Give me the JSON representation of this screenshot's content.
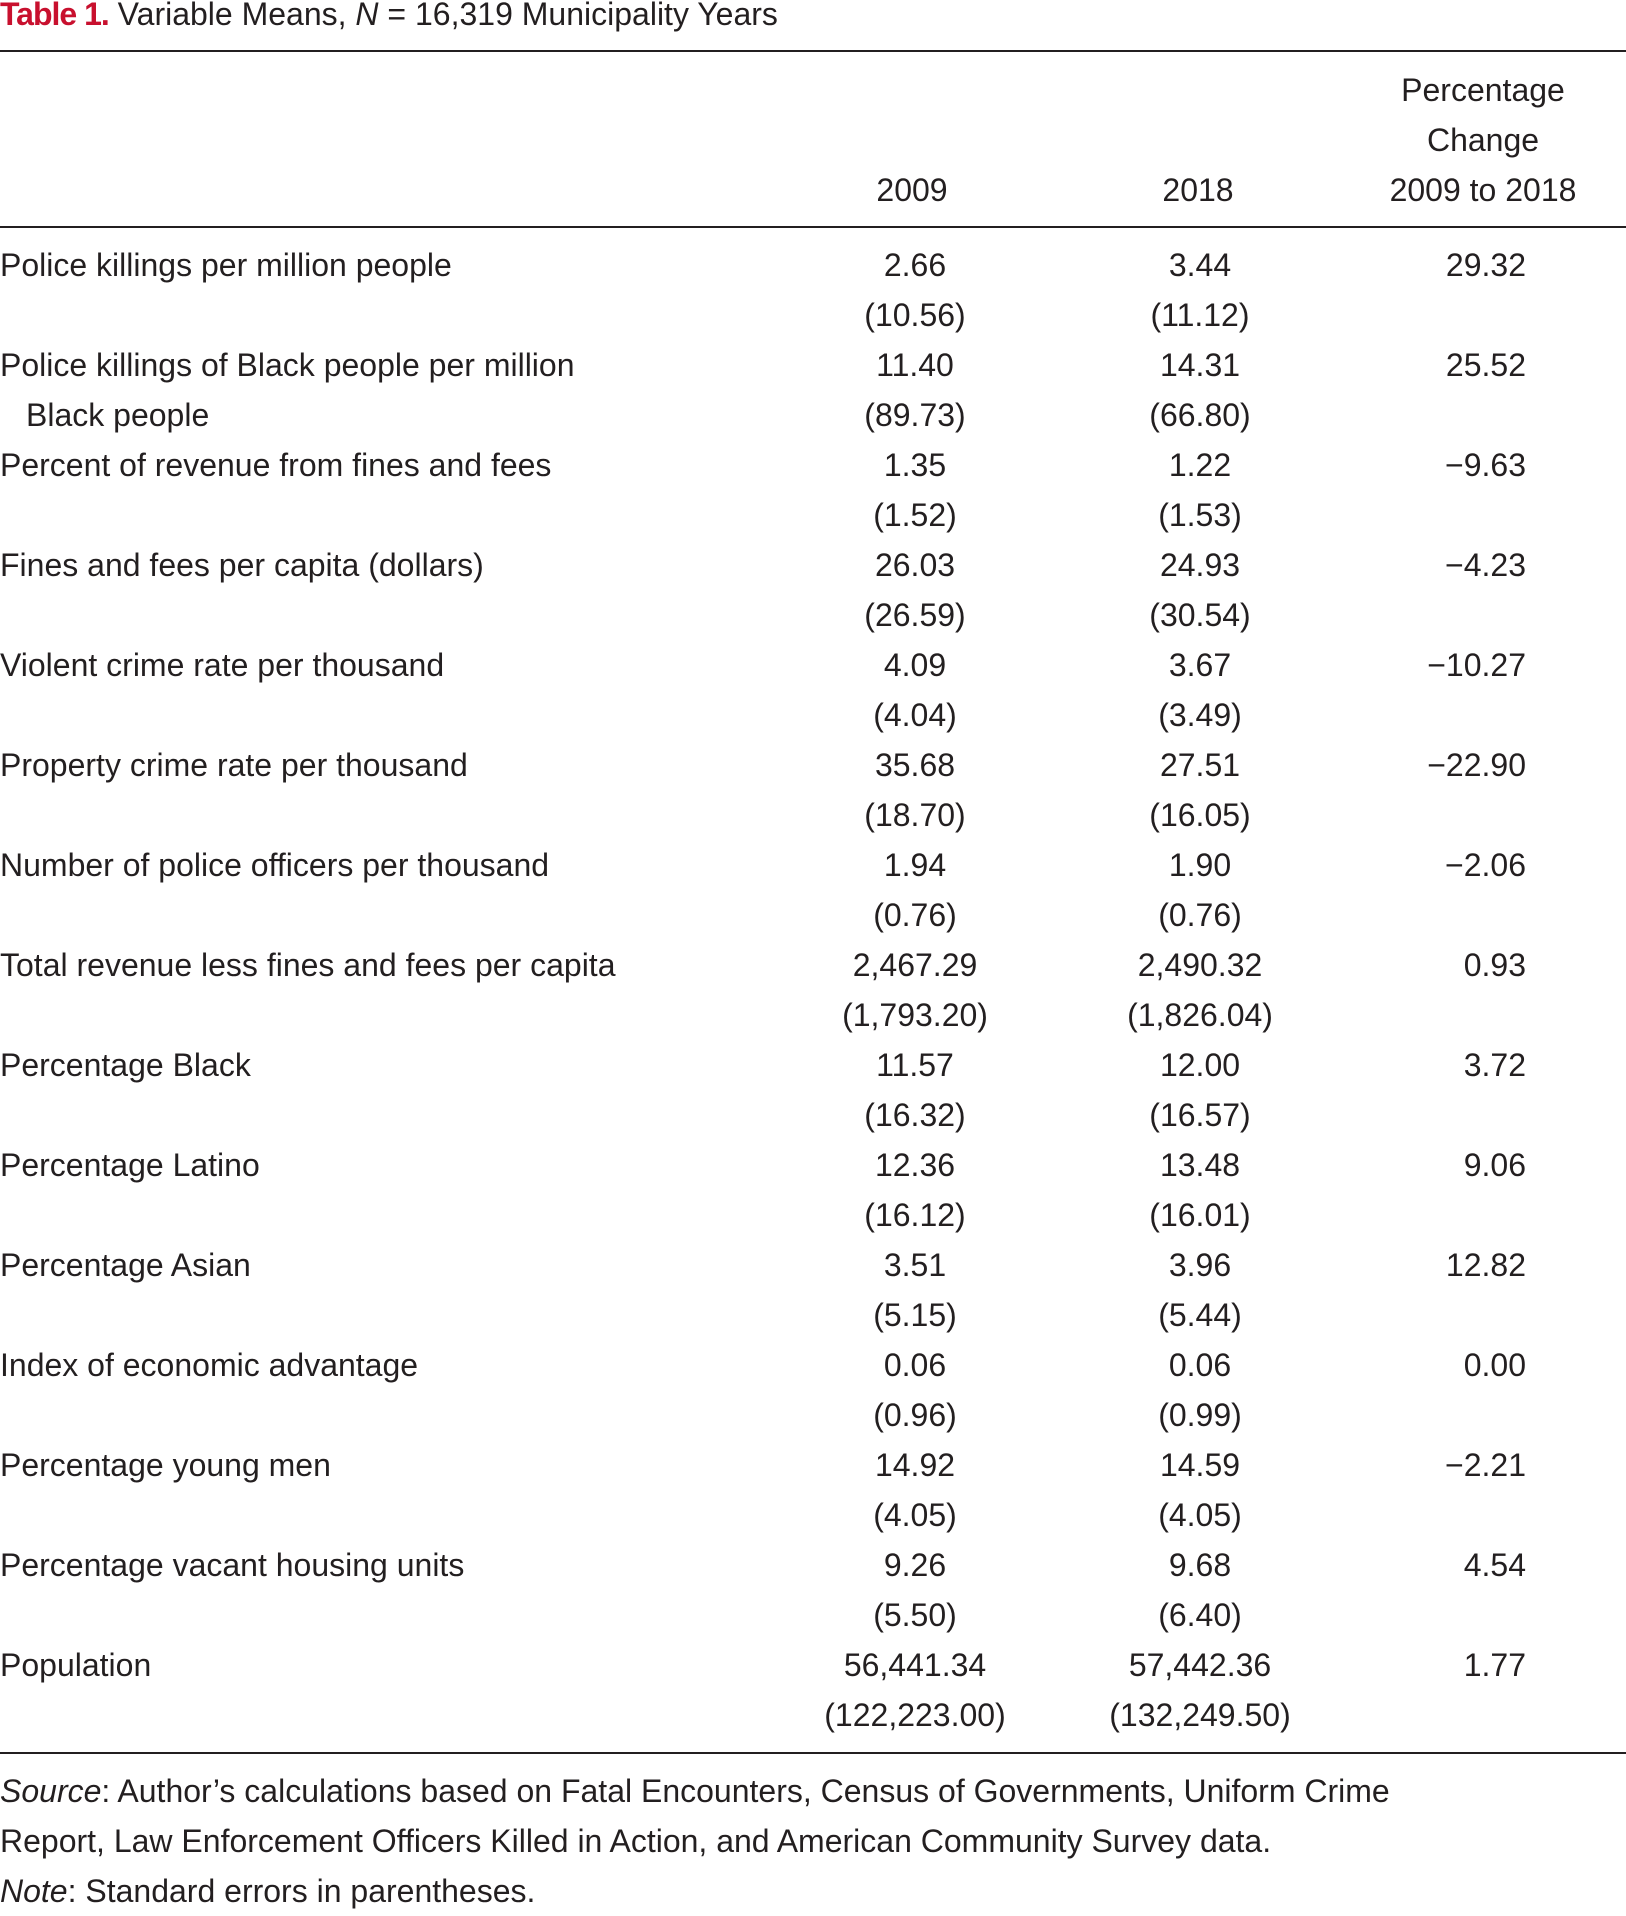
{
  "caption": {
    "label": "Table 1.",
    "text_before_n": " Variable Means, ",
    "n_symbol": "N",
    "text_after_n": " = 16,319 Municipality Years"
  },
  "header": {
    "col_2009": "2009",
    "col_2018": "2018",
    "col_pct": [
      "Percentage",
      "Change",
      "2009 to 2018"
    ]
  },
  "rows": [
    {
      "label": [
        "Police killings per million people"
      ],
      "v2009": "2.66",
      "se2009": "(10.56)",
      "v2018": "3.44",
      "se2018": "(11.12)",
      "pct": "29.32"
    },
    {
      "label": [
        "Police killings of Black people per million",
        "Black people"
      ],
      "v2009": "11.40",
      "se2009": "(89.73)",
      "v2018": "14.31",
      "se2018": "(66.80)",
      "pct": "25.52"
    },
    {
      "label": [
        "Percent of revenue from fines and fees"
      ],
      "v2009": "1.35",
      "se2009": "(1.52)",
      "v2018": "1.22",
      "se2018": "(1.53)",
      "pct": "−9.63"
    },
    {
      "label": [
        "Fines and fees per capita (dollars)"
      ],
      "v2009": "26.03",
      "se2009": "(26.59)",
      "v2018": "24.93",
      "se2018": "(30.54)",
      "pct": "−4.23"
    },
    {
      "label": [
        "Violent crime rate per thousand"
      ],
      "v2009": "4.09",
      "se2009": "(4.04)",
      "v2018": "3.67",
      "se2018": "(3.49)",
      "pct": "−10.27"
    },
    {
      "label": [
        "Property crime rate per thousand"
      ],
      "v2009": "35.68",
      "se2009": "(18.70)",
      "v2018": "27.51",
      "se2018": "(16.05)",
      "pct": "−22.90"
    },
    {
      "label": [
        "Number of police officers per thousand"
      ],
      "v2009": "1.94",
      "se2009": "(0.76)",
      "v2018": "1.90",
      "se2018": "(0.76)",
      "pct": "−2.06"
    },
    {
      "label": [
        "Total revenue less fines and fees per capita"
      ],
      "v2009": "2,467.29",
      "se2009": "(1,793.20)",
      "v2018": "2,490.32",
      "se2018": "(1,826.04)",
      "pct": "0.93"
    },
    {
      "label": [
        "Percentage Black"
      ],
      "v2009": "11.57",
      "se2009": "(16.32)",
      "v2018": "12.00",
      "se2018": "(16.57)",
      "pct": "3.72"
    },
    {
      "label": [
        "Percentage Latino"
      ],
      "v2009": "12.36",
      "se2009": "(16.12)",
      "v2018": "13.48",
      "se2018": "(16.01)",
      "pct": "9.06"
    },
    {
      "label": [
        "Percentage Asian"
      ],
      "v2009": "3.51",
      "se2009": "(5.15)",
      "v2018": "3.96",
      "se2018": "(5.44)",
      "pct": "12.82"
    },
    {
      "label": [
        "Index of economic advantage"
      ],
      "v2009": "0.06",
      "se2009": "(0.96)",
      "v2018": "0.06",
      "se2018": "(0.99)",
      "pct": "0.00"
    },
    {
      "label": [
        "Percentage young men"
      ],
      "v2009": "14.92",
      "se2009": "(4.05)",
      "v2018": "14.59",
      "se2018": "(4.05)",
      "pct": "−2.21"
    },
    {
      "label": [
        "Percentage vacant housing units"
      ],
      "v2009": "9.26",
      "se2009": "(5.50)",
      "v2018": "9.68",
      "se2018": "(6.40)",
      "pct": "4.54"
    },
    {
      "label": [
        "Population"
      ],
      "v2009": "56,441.34",
      "se2009": "(122,223.00)",
      "v2018": "57,442.36",
      "se2018": "(132,249.50)",
      "pct": "1.77"
    }
  ],
  "notes": {
    "source_label": "Source",
    "source_text_1": ": Author’s calculations based on Fatal Encounters, Census of Governments, Uniform Crime",
    "source_text_2": "Report, Law Enforcement Officers Killed in Action, and American Community Survey data.",
    "note_label": "Note",
    "note_text": ": Standard errors in parentheses."
  }
}
